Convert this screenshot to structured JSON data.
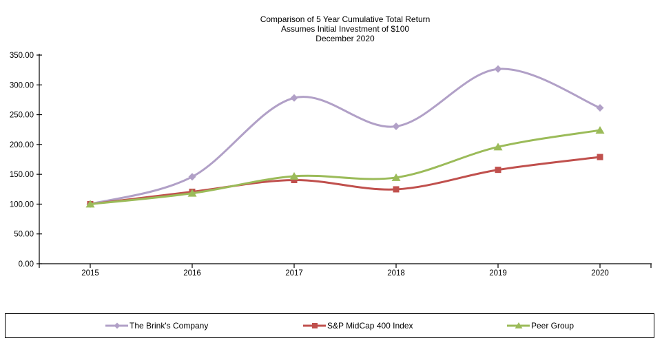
{
  "title": {
    "line1": "Comparison of 5 Year Cumulative Total Return",
    "line2": "Assumes Initial Investment of $100",
    "line3": "December 2020"
  },
  "chart_data": {
    "type": "line",
    "smooth": true,
    "grid": false,
    "legend_position": "bottom",
    "categories": [
      "2015",
      "2016",
      "2017",
      "2018",
      "2019",
      "2020"
    ],
    "series": [
      {
        "name": "The Brink's Company",
        "color": "#B1A0C7",
        "marker": "diamond",
        "values": [
          100.0,
          145.9,
          278.1,
          230.4,
          326.6,
          261.5
        ]
      },
      {
        "name": "S&P MidCap 400 Index",
        "color": "#C0504D",
        "marker": "square",
        "values": [
          100.0,
          120.74,
          140.35,
          124.8,
          157.49,
          179.0
        ]
      },
      {
        "name": "Peer Group",
        "color": "#9BBB59",
        "marker": "triangle",
        "values": [
          100.0,
          118.2,
          146.8,
          144.6,
          196.0,
          224.0
        ]
      }
    ],
    "ylabel": "",
    "xlabel": "",
    "ylim": [
      0,
      350
    ],
    "y_tick_step": 50,
    "y_tick_labels": [
      "0.00",
      "50.00",
      "100.00",
      "150.00",
      "200.00",
      "250.00",
      "300.00",
      "350.00"
    ],
    "axis_color": "#000000"
  }
}
